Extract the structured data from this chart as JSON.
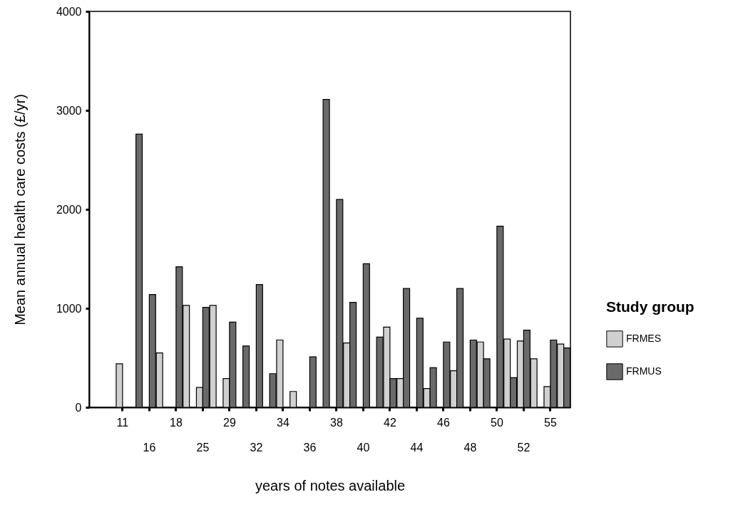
{
  "chart_data": {
    "type": "bar",
    "xlabel": "years of notes available",
    "ylabel": "Mean annual health care costs (£/yr)",
    "legend_title": "Study group",
    "categories": [
      "11",
      null,
      "16",
      null,
      "18",
      null,
      "25",
      null,
      "29",
      null,
      "32",
      null,
      "34",
      null,
      "36",
      null,
      "38",
      null,
      "40",
      null,
      "42",
      null,
      "44",
      null,
      "46",
      null,
      "48",
      null,
      "50",
      null,
      "52",
      null,
      "55",
      null
    ],
    "series": [
      {
        "name": "FRMES",
        "color": "#d0d0d0",
        "values": [
          440,
          null,
          null,
          550,
          null,
          1030,
          200,
          1030,
          290,
          null,
          null,
          null,
          680,
          160,
          null,
          null,
          null,
          650,
          null,
          null,
          810,
          290,
          null,
          190,
          null,
          370,
          null,
          660,
          null,
          690,
          670,
          490,
          210,
          640
        ]
      },
      {
        "name": "FRMUS",
        "color": "#6a6a6a",
        "values": [
          null,
          2760,
          1140,
          null,
          1420,
          null,
          1010,
          null,
          860,
          620,
          1240,
          340,
          null,
          null,
          510,
          3110,
          2100,
          1060,
          1450,
          710,
          290,
          1200,
          900,
          400,
          660,
          1200,
          680,
          490,
          1830,
          300,
          780,
          null,
          680,
          600
        ]
      }
    ],
    "ylim": [
      0,
      4000
    ],
    "yticks": [
      0,
      1000,
      2000,
      3000,
      4000
    ],
    "grid": false,
    "legend": "right"
  }
}
